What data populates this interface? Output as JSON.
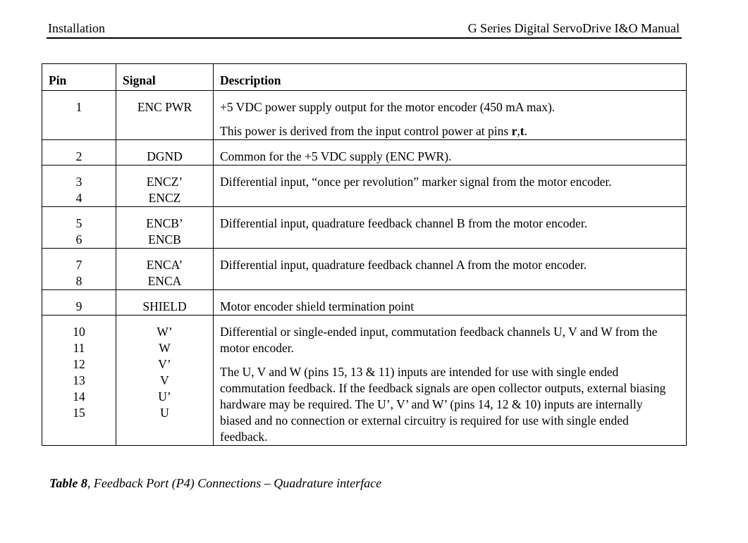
{
  "header": {
    "left": "Installation",
    "right": "G Series Digital ServoDrive I&O Manual"
  },
  "table": {
    "columns": [
      "Pin",
      "Signal",
      "Description"
    ],
    "rows": [
      {
        "pins": [
          "1"
        ],
        "signals": [
          "ENC PWR"
        ],
        "desc": [
          "+5 VDC power supply output for the motor encoder (450 mA max).",
          "This power is derived from the input control power at pins "
        ],
        "desc_bold": "r",
        "desc_sep": ",",
        "desc_bold2": "t",
        "desc_end": "."
      },
      {
        "pins": [
          "2"
        ],
        "signals": [
          "DGND"
        ],
        "desc": [
          "Common for the +5 VDC supply (ENC PWR)."
        ]
      },
      {
        "pins": [
          "3",
          "4"
        ],
        "signals": [
          "ENCZ’",
          "ENCZ"
        ],
        "desc": [
          "Differential input, “once per revolution” marker signal from the motor encoder."
        ]
      },
      {
        "pins": [
          "5",
          "6"
        ],
        "signals": [
          "ENCB’",
          "ENCB"
        ],
        "desc": [
          "Differential input, quadrature feedback channel B from the motor encoder."
        ]
      },
      {
        "pins": [
          "7",
          "8"
        ],
        "signals": [
          "ENCA’",
          "ENCA"
        ],
        "desc": [
          "Differential input, quadrature feedback channel A from the motor encoder."
        ]
      },
      {
        "pins": [
          "9"
        ],
        "signals": [
          "SHIELD"
        ],
        "desc": [
          "Motor encoder shield termination point"
        ]
      },
      {
        "pins": [
          "10",
          "11",
          "12",
          "13",
          "14",
          "15"
        ],
        "signals": [
          "W’",
          "W",
          "V’",
          "V",
          "U’",
          "U"
        ],
        "desc": [
          "Differential or single-ended input, commutation feedback channels U, V and W from the motor encoder.",
          "The U, V and W (pins 15, 13 & 11) inputs are intended for use with single ended commutation feedback.  If the feedback signals are open collector outputs, external biasing hardware may be required.  The U’, V’ and W’ (pins 14, 12 & 10) inputs are internally biased and no connection or external circuitry is required for use with single ended feedback."
        ]
      }
    ]
  },
  "caption": {
    "label": "Table 8",
    "text": ", Feedback Port (P4) Connections – Quadrature interface"
  }
}
